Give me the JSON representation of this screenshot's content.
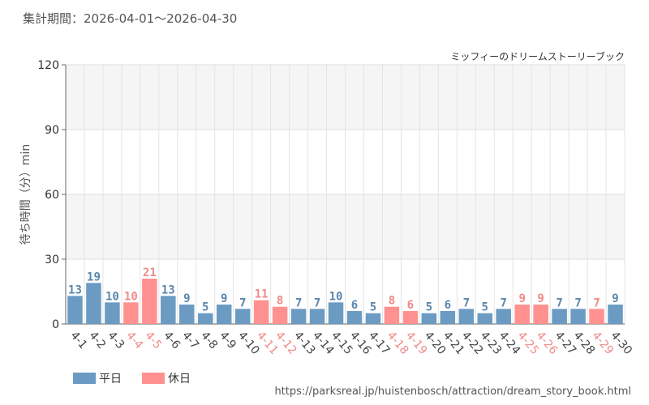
{
  "header": {
    "period_label": "集計期間：2026-04-01～2026-04-30",
    "attraction_name": "ミッフィーのドリームストーリーブック",
    "source_url": "https://parksreal.jp/huistenbosch/attraction/dream_story_book.html"
  },
  "colors": {
    "weekday": "#6b9bc3",
    "holiday": "#ff9190",
    "weekday_text": "#5a86ad",
    "holiday_text": "#f08a89",
    "band": "#f5f5f5",
    "grid": "#e4e4e4"
  },
  "chart_data": {
    "type": "bar",
    "title": "",
    "xlabel": "",
    "ylabel": "待ち時間（分）min",
    "ylim": [
      0,
      120
    ],
    "yticks": [
      0,
      30,
      60,
      90,
      120
    ],
    "grid": true,
    "legend_position": "bottom-left",
    "categories": [
      "4-1",
      "4-2",
      "4-3",
      "4-4",
      "4-5",
      "4-6",
      "4-7",
      "4-8",
      "4-9",
      "4-10",
      "4-11",
      "4-12",
      "4-13",
      "4-14",
      "4-15",
      "4-16",
      "4-17",
      "4-18",
      "4-19",
      "4-20",
      "4-21",
      "4-22",
      "4-23",
      "4-24",
      "4-25",
      "4-26",
      "4-27",
      "4-28",
      "4-29",
      "4-30"
    ],
    "values": [
      13,
      19,
      10,
      10,
      21,
      13,
      9,
      5,
      9,
      7,
      11,
      8,
      7,
      7,
      10,
      6,
      5,
      8,
      6,
      5,
      6,
      7,
      5,
      7,
      9,
      9,
      7,
      7,
      7,
      9
    ],
    "day_type": [
      "weekday",
      "weekday",
      "weekday",
      "holiday",
      "holiday",
      "weekday",
      "weekday",
      "weekday",
      "weekday",
      "weekday",
      "holiday",
      "holiday",
      "weekday",
      "weekday",
      "weekday",
      "weekday",
      "weekday",
      "holiday",
      "holiday",
      "weekday",
      "weekday",
      "weekday",
      "weekday",
      "weekday",
      "holiday",
      "holiday",
      "weekday",
      "weekday",
      "holiday",
      "weekday"
    ],
    "legend": [
      {
        "key": "weekday",
        "label": "平日"
      },
      {
        "key": "holiday",
        "label": "休日"
      }
    ]
  }
}
